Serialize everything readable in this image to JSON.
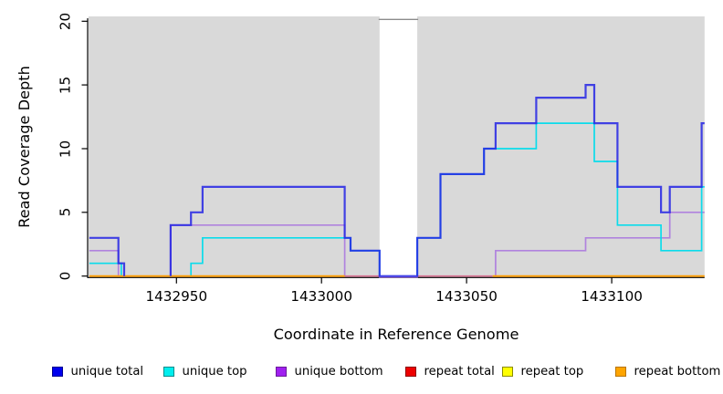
{
  "chart_data": {
    "type": "line",
    "subtype": "step-coverage",
    "title": "",
    "xlabel": "Coordinate in Reference Genome",
    "ylabel": "Read Coverage Depth",
    "xlim": [
      1432920,
      1433132
    ],
    "ylim": [
      0,
      20
    ],
    "x_ticks": [
      1432950,
      1433000,
      1433050,
      1433100
    ],
    "y_ticks": [
      0,
      5,
      10,
      15,
      20
    ],
    "grid": "off",
    "plot_background": "#D9D9D9",
    "no_data_region": {
      "from": 1433020,
      "to": 1433033,
      "fill": "#FFFFFF",
      "top_border": "#8C8C8C"
    },
    "series": [
      {
        "name": "unique total",
        "line_color": "#2424E4",
        "legend_color": "#0000EE",
        "legend_border": "#000090",
        "width": 2.2,
        "opacity": 0.85,
        "z": 9,
        "segments": [
          [
            1432920,
            1432930,
            3
          ],
          [
            1432930,
            1432932,
            1
          ],
          [
            1432932,
            1432948,
            0,
            1
          ],
          [
            1432948,
            1432955,
            4
          ],
          [
            1432955,
            1432959,
            5
          ],
          [
            1432959,
            1433008,
            7
          ],
          [
            1433008,
            1433010,
            3
          ],
          [
            1433010,
            1433020,
            2
          ],
          [
            1433020,
            1433033,
            0
          ],
          [
            1433033,
            1433041,
            3
          ],
          [
            1433041,
            1433056,
            8
          ],
          [
            1433056,
            1433060,
            10
          ],
          [
            1433060,
            1433074,
            12
          ],
          [
            1433074,
            1433091,
            14
          ],
          [
            1433091,
            1433094,
            15
          ],
          [
            1433094,
            1433102,
            12
          ],
          [
            1433102,
            1433117,
            7
          ],
          [
            1433117,
            1433120,
            5
          ],
          [
            1433120,
            1433131,
            7
          ],
          [
            1433131,
            1433132,
            12
          ]
        ]
      },
      {
        "name": "unique top",
        "line_color": "#00DCEC",
        "legend_color": "#00EEEE",
        "legend_border": "#008B8B",
        "width": 1.7,
        "opacity": 0.95,
        "z": 5,
        "segments": [
          [
            1432920,
            1432931,
            1
          ],
          [
            1432931,
            1432955,
            0,
            1
          ],
          [
            1432955,
            1432959,
            1
          ],
          [
            1432959,
            1433010,
            3
          ],
          [
            1433010,
            1433020,
            2
          ],
          [
            1433020,
            1433033,
            0,
            1
          ],
          [
            1433033,
            1433041,
            3
          ],
          [
            1433041,
            1433056,
            8
          ],
          [
            1433056,
            1433074,
            10
          ],
          [
            1433074,
            1433094,
            12
          ],
          [
            1433094,
            1433102,
            9
          ],
          [
            1433102,
            1433117,
            4
          ],
          [
            1433117,
            1433131,
            2
          ],
          [
            1433131,
            1433132,
            7
          ]
        ]
      },
      {
        "name": "unique bottom",
        "line_color": "#AE7EDE",
        "legend_color": "#A020F0",
        "legend_border": "#6A1B9A",
        "width": 1.7,
        "opacity": 0.95,
        "z": 4,
        "segments": [
          [
            1432920,
            1432930,
            2
          ],
          [
            1432930,
            1432948,
            0,
            1
          ],
          [
            1432948,
            1433008,
            4
          ],
          [
            1433008,
            1433020,
            0,
            1
          ],
          [
            1433020,
            1433033,
            -0.08
          ],
          [
            1433033,
            1433060,
            0,
            1
          ],
          [
            1433060,
            1433091,
            2
          ],
          [
            1433091,
            1433120,
            3
          ],
          [
            1433120,
            1433132,
            5
          ]
        ]
      },
      {
        "name": "repeat total",
        "line_color": "#D7698C",
        "legend_color": "#EE0000",
        "legend_border": "#8B0000",
        "width": 1.7,
        "opacity": 0.95,
        "z": 6,
        "segments": [
          [
            1433008,
            1433020,
            0
          ],
          [
            1433020,
            1433033,
            0,
            1
          ],
          [
            1433033,
            1433059,
            0
          ]
        ]
      },
      {
        "name": "repeat top",
        "line_color": "#FFFF00",
        "legend_color": "#FFFF00",
        "legend_border": "#8B8B00",
        "width": 1.7,
        "opacity": 1,
        "z": 3,
        "segments": [
          [
            1432920,
            1433132,
            0,
            1
          ]
        ]
      },
      {
        "name": "repeat bottom",
        "line_color": "#FF9D00",
        "legend_color": "#FFA500",
        "legend_border": "#B87400",
        "width": 1.8,
        "opacity": 1,
        "z": 7,
        "segments": [
          [
            1432920,
            1433008,
            0
          ],
          [
            1433008,
            1433059,
            0,
            1
          ],
          [
            1433059,
            1433132,
            0
          ]
        ]
      }
    ]
  }
}
